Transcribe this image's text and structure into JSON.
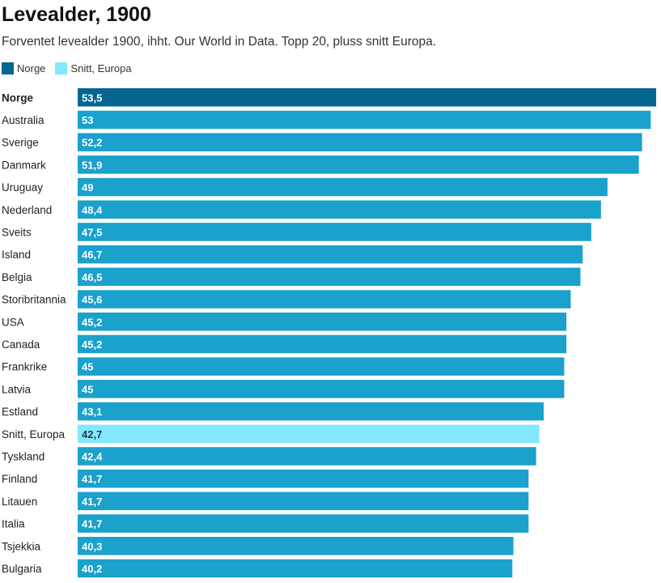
{
  "colors": {
    "highlight": "#036590",
    "normal": "#1aa1cc",
    "average": "#83e8fd"
  },
  "legend": [
    {
      "label": "Norge",
      "color": "#036590"
    },
    {
      "label": "Snitt, Europa",
      "color": "#83e8fd"
    }
  ],
  "chart_data": {
    "type": "bar",
    "orientation": "horizontal",
    "title": "Levealder, 1900",
    "subtitle": "Forventet levealder 1900, ihht. Our World in Data. Topp 20, pluss snitt Europa.",
    "xlim": [
      0,
      53.5
    ],
    "categories": [
      "Norge",
      "Australia",
      "Sverige",
      "Danmark",
      "Uruguay",
      "Nederland",
      "Sveits",
      "Island",
      "Belgia",
      "Storibritannia",
      "USA",
      "Canada",
      "Frankrike",
      "Latvia",
      "Estland",
      "Snitt, Europa",
      "Tyskland",
      "Finland",
      "Litauen",
      "Italia",
      "Tsjekkia",
      "Bulgaria"
    ],
    "values": [
      53.5,
      53,
      52.2,
      51.9,
      49,
      48.4,
      47.5,
      46.7,
      46.5,
      45.6,
      45.2,
      45.2,
      45,
      45,
      43.1,
      42.7,
      42.4,
      41.7,
      41.7,
      41.7,
      40.3,
      40.2
    ],
    "value_labels": [
      "53,5",
      "53",
      "52,2",
      "51,9",
      "49",
      "48,4",
      "47,5",
      "46,7",
      "46,5",
      "45,6",
      "45,2",
      "45,2",
      "45",
      "45",
      "43,1",
      "42,7",
      "42,4",
      "41,7",
      "41,7",
      "41,7",
      "40,3",
      "40,2"
    ],
    "highlight": "Norge",
    "average": "Snitt, Europa"
  }
}
